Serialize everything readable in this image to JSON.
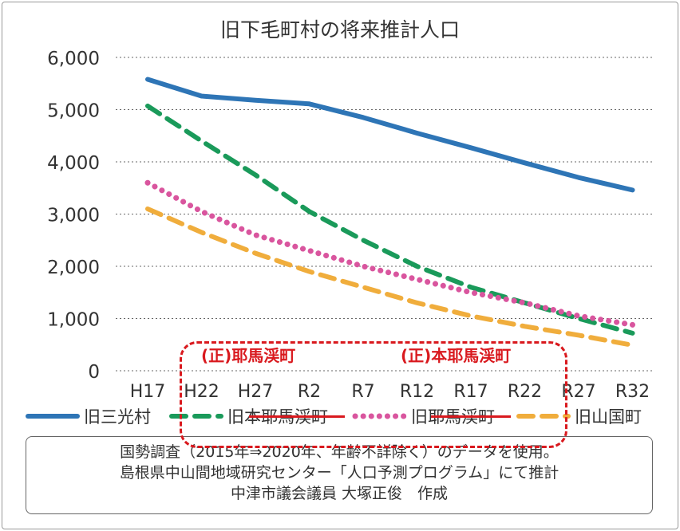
{
  "chart_data": {
    "type": "line",
    "title": "旧下毛町村の将来推計人口",
    "categories": [
      "H17",
      "H22",
      "H27",
      "R2",
      "R7",
      "R12",
      "R17",
      "R22",
      "R27",
      "R32"
    ],
    "ylim": [
      0,
      6000
    ],
    "yticks": [
      "0",
      "1,000",
      "2,000",
      "3,000",
      "4,000",
      "5,000",
      "6,000"
    ],
    "grid": true,
    "legend_position": "bottom",
    "series": [
      {
        "name": "旧三光村",
        "color": "#2e75b6",
        "style": "solid",
        "values": [
          5580,
          5260,
          5180,
          5110,
          4850,
          4550,
          4270,
          3980,
          3700,
          3460
        ]
      },
      {
        "name": "旧本耶馬渓町",
        "color": "#1a9a5a",
        "style": "dashed",
        "values": [
          5070,
          4400,
          3750,
          3050,
          2500,
          2000,
          1600,
          1300,
          1000,
          720
        ]
      },
      {
        "name": "旧耶馬渓町",
        "color": "#d9559e",
        "style": "dotted",
        "values": [
          3600,
          3050,
          2600,
          2300,
          2000,
          1750,
          1500,
          1300,
          1050,
          880
        ]
      },
      {
        "name": "旧山国町",
        "color": "#f0ad3c",
        "style": "dashed",
        "values": [
          3100,
          2650,
          2250,
          1900,
          1600,
          1300,
          1050,
          850,
          680,
          490
        ]
      }
    ]
  },
  "annotations": {
    "fix1": "(正)耶馬渓町",
    "fix2": "(正)本耶馬渓町",
    "color": "#d9191e"
  },
  "note": [
    "国勢調査（2015年⇒2020年、年齢不詳除く）のデータを使用。",
    "島根県中山間地域研究センター「人口予測プログラム」にて推計",
    "中津市議会議員 大塚正俊　作成"
  ]
}
